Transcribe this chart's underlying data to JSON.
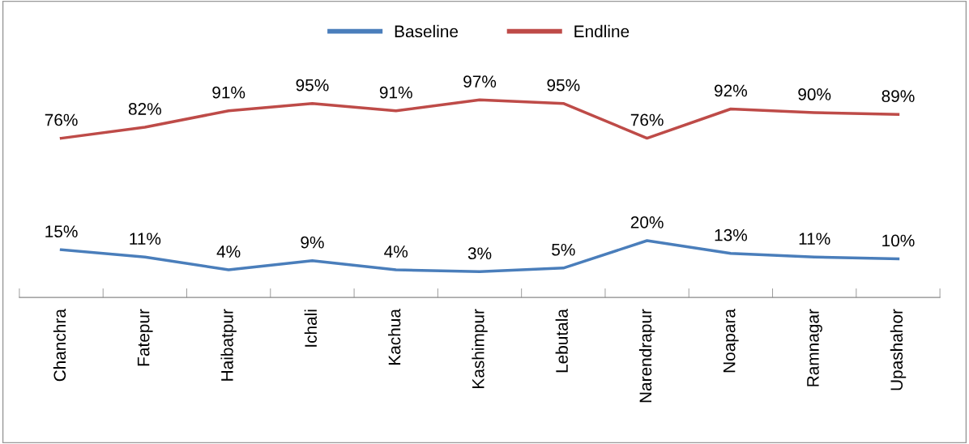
{
  "chart_data": {
    "type": "line",
    "categories": [
      "Chanchra",
      "Fatepur",
      "Haibatpur",
      "Ichali",
      "Kachua",
      "Kashimpur",
      "Lebutala",
      "Narendrapur",
      "Noapara",
      "Ramnagar",
      "Upashahor"
    ],
    "series": [
      {
        "name": "Baseline",
        "color": "#4a7ebb",
        "values": [
          15,
          11,
          4,
          9,
          4,
          3,
          5,
          20,
          13,
          11,
          10
        ],
        "value_labels": [
          "15%",
          "11%",
          "4%",
          "9%",
          "4%",
          "3%",
          "5%",
          "20%",
          "13%",
          "11%",
          "10%"
        ]
      },
      {
        "name": "Endline",
        "color": "#be4b48",
        "values": [
          76,
          82,
          91,
          95,
          91,
          97,
          95,
          76,
          92,
          90,
          89
        ],
        "value_labels": [
          "76%",
          "82%",
          "91%",
          "95%",
          "91%",
          "97%",
          "95%",
          "76%",
          "92%",
          "90%",
          "89%"
        ]
      }
    ],
    "legend": "top",
    "grid": false,
    "marker": "none",
    "line_style": "solid",
    "tick_labels": "x"
  }
}
